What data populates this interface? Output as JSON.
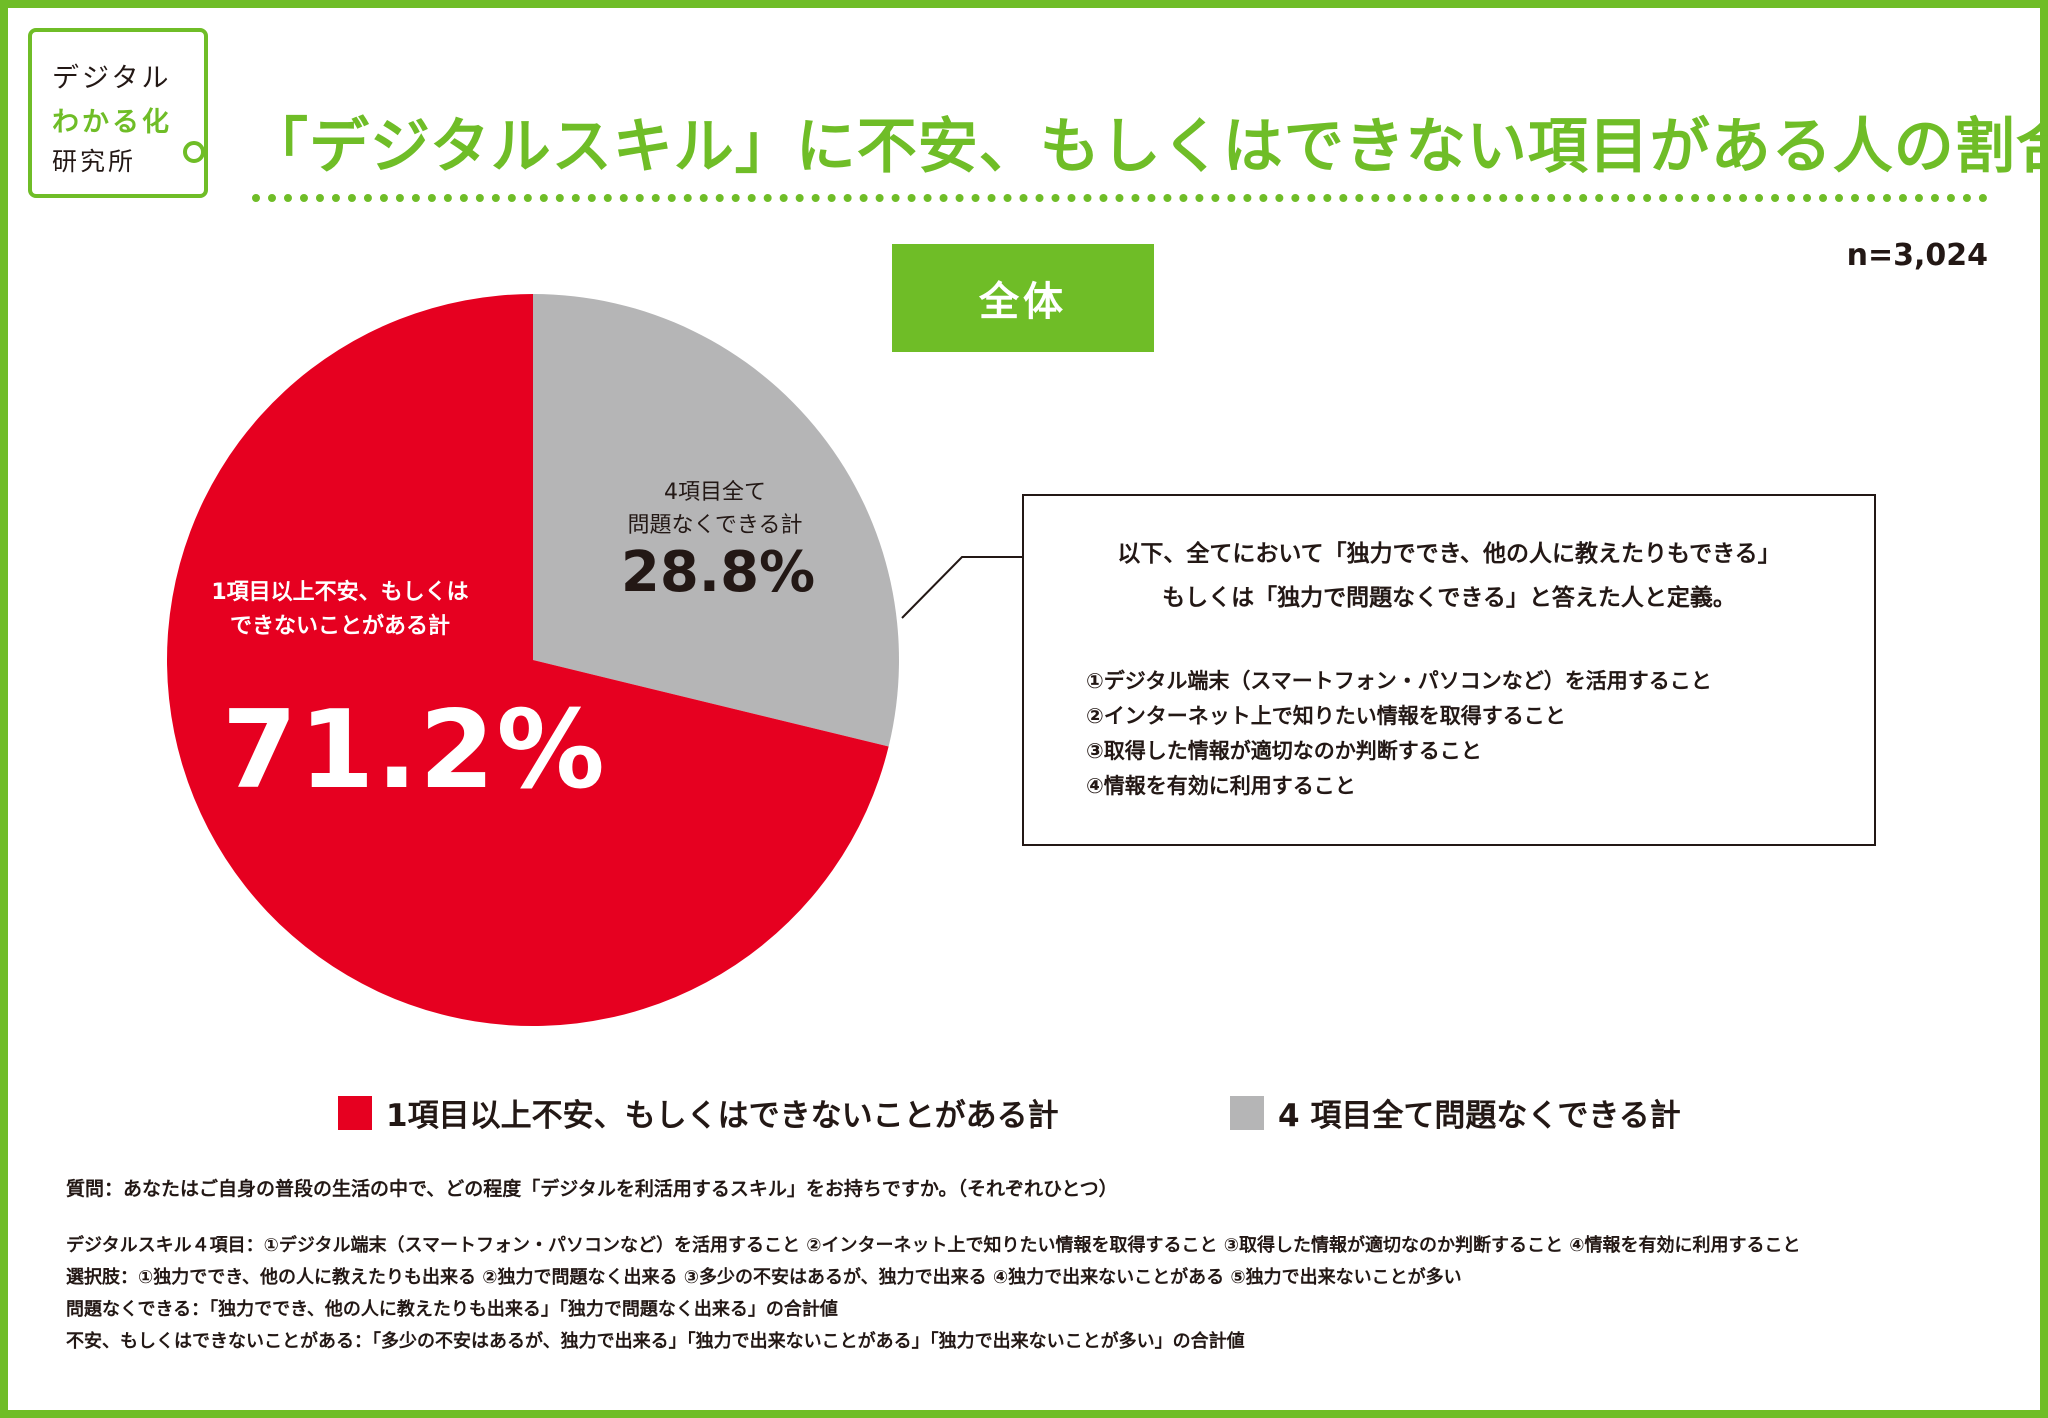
{
  "brand": {
    "line1": "デジタル",
    "line2": "わかる化",
    "line3": "研究所",
    "accent_color": "#6fbd27"
  },
  "header": {
    "title": "「デジタルスキル」に不安、もしくはできない項目がある人の割合"
  },
  "sample_size": "n=3,024",
  "group_tag": "全体",
  "chart_data": {
    "type": "pie",
    "title": "「デジタルスキル」に不安、もしくはできない項目がある人の割合",
    "slices": [
      {
        "name": "4項目全て問題なくできる計",
        "inner_label": "4項目全て\n問題なくできる計",
        "value": 28.8,
        "value_label": "28.8%",
        "color": "#b5b5b6"
      },
      {
        "name": "1項目以上不安、もしくはできないことがある計",
        "inner_label": "1項目以上不安、もしくは\nできないことがある計",
        "value": 71.2,
        "value_label": "71.2%",
        "color": "#e60020"
      }
    ],
    "start": "12 o'clock",
    "direction": "clockwise",
    "legend_position": "bottom"
  },
  "legend": {
    "red_label": "1項目以上不安、もしくはできないことがある計",
    "gray_label": "4 項目全て問題なくできる計"
  },
  "definition": {
    "lead_line1": "以下、全てにおいて「独力ででき、他の人に教えたりもできる」",
    "lead_line2": "もしくは「独力で問題なくできる」と答えた人と定義。",
    "items": [
      "①デジタル端末（スマートフォン・パソコンなど）を活用すること",
      "②インターネット上で知りたい情報を取得すること",
      "③取得した情報が適切なのか判断すること",
      "④情報を有効に利用すること"
    ]
  },
  "footnote": {
    "question": "質問：あなたはご自身の普段の生活の中で、どの程度「デジタルを利活用するスキル」をお持ちですか。（それぞれひとつ）",
    "notes": [
      "デジタルスキル４項目：①デジタル端末（スマートフォン・パソコンなど）を活用すること ②インターネット上で知りたい情報を取得すること ③取得した情報が適切なのか判断すること ④情報を有効に利用すること",
      "選択肢：①独力ででき、他の人に教えたりも出来る ②独力で問題なく出来る ③多少の不安はあるが、独力で出来る ④独力で出来ないことがある ⑤独力で出来ないことが多い",
      "問題なくできる：「独力ででき、他の人に教えたりも出来る」「独力で問題なく出来る」の合計値",
      "不安、もしくはできないことがある：「多少の不安はあるが、独力で出来る」「独力で出来ないことがある」「独力で出来ないことが多い」の合計値"
    ]
  }
}
